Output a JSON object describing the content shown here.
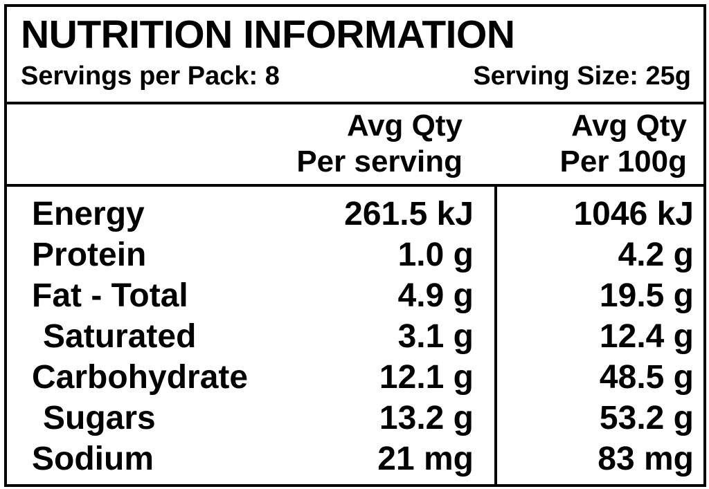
{
  "title": "NUTRITION INFORMATION",
  "servings_per_pack": "Servings per Pack: 8",
  "serving_size": "Serving Size: 25g",
  "columns": {
    "per_serving": {
      "line1": "Avg Qty",
      "line2": "Per serving"
    },
    "per_100g": {
      "line1": "Avg Qty",
      "line2": "Per 100g"
    }
  },
  "rows": [
    {
      "name": "Energy",
      "per_serving": "261.5 kJ",
      "per_100g": "1046 kJ",
      "indent": false
    },
    {
      "name": "Protein",
      "per_serving": "1.0 g",
      "per_100g": "4.2 g",
      "indent": false
    },
    {
      "name": "Fat - Total",
      "per_serving": "4.9 g",
      "per_100g": "19.5 g",
      "indent": false
    },
    {
      "name": "Saturated",
      "per_serving": "3.1 g",
      "per_100g": "12.4 g",
      "indent": true
    },
    {
      "name": "Carbohydrate",
      "per_serving": "12.1 g",
      "per_100g": "48.5 g",
      "indent": false
    },
    {
      "name": "Sugars",
      "per_serving": "13.2 g",
      "per_100g": "53.2 g",
      "indent": true
    },
    {
      "name": "Sodium",
      "per_serving": "21 mg",
      "per_100g": "83 mg",
      "indent": false
    }
  ]
}
